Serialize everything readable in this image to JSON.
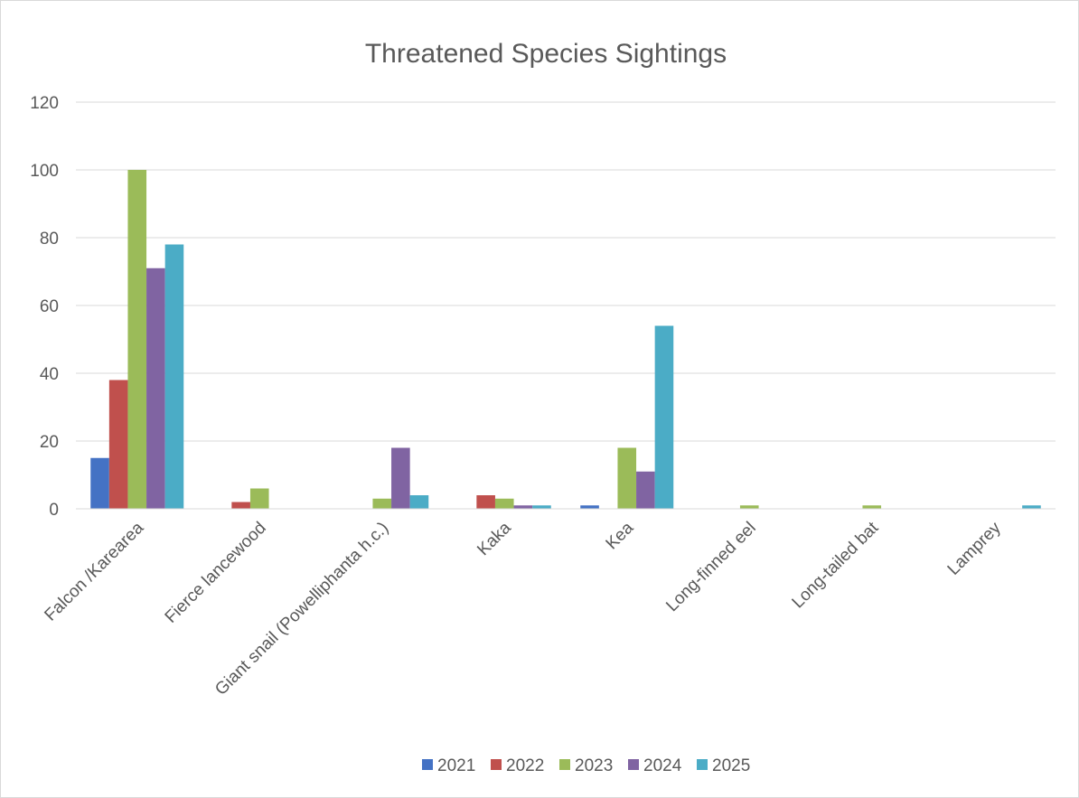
{
  "chart_data": {
    "type": "bar",
    "title": "Threatened Species Sightings",
    "xlabel": "",
    "ylabel": "",
    "categories": [
      "Falcon /Karearea",
      "Fierce lancewood",
      "Giant snail (Powelliphanta h.c.)",
      "Kaka",
      "Kea",
      "Long-finned eel",
      "Long-tailed bat",
      "Lamprey"
    ],
    "series": [
      {
        "name": "2021",
        "color": "#4472C4",
        "values": [
          15,
          0,
          0,
          0,
          1,
          0,
          0,
          0
        ]
      },
      {
        "name": "2022",
        "color": "#C0504D",
        "values": [
          38,
          2,
          0,
          4,
          0,
          0,
          0,
          0
        ]
      },
      {
        "name": "2023",
        "color": "#9BBB59",
        "values": [
          100,
          6,
          3,
          3,
          18,
          1,
          1,
          0
        ]
      },
      {
        "name": "2024",
        "color": "#8064A2",
        "values": [
          71,
          0,
          18,
          1,
          11,
          0,
          0,
          0
        ]
      },
      {
        "name": "2025",
        "color": "#4BACC6",
        "values": [
          78,
          0,
          4,
          1,
          54,
          0,
          0,
          1
        ]
      }
    ],
    "ylim": [
      0,
      120
    ],
    "yticks": [
      0,
      20,
      40,
      60,
      80,
      100,
      120
    ],
    "grid": true,
    "legend": "bottom"
  }
}
